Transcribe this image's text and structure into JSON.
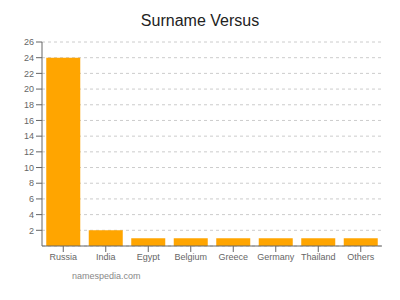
{
  "chart_data": {
    "type": "bar",
    "title": "Surname Versus",
    "categories": [
      "Russia",
      "India",
      "Egypt",
      "Belgium",
      "Greece",
      "Germany",
      "Thailand",
      "Others"
    ],
    "values": [
      24,
      2,
      1,
      1,
      1,
      1,
      1,
      1
    ],
    "color": "#FFA500",
    "ylim": [
      0,
      26
    ],
    "yticks": [
      2,
      4,
      6,
      8,
      10,
      12,
      14,
      16,
      18,
      20,
      22,
      24,
      26
    ],
    "grid": true,
    "annotations": [
      "namespedia.com"
    ]
  }
}
